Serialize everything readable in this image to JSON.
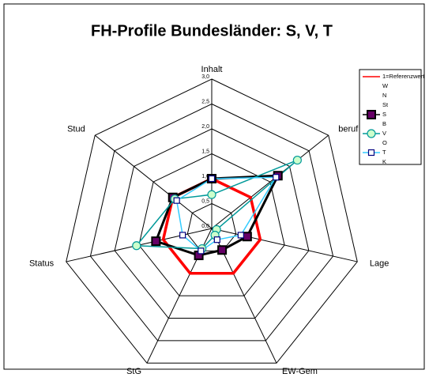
{
  "chart_data": {
    "type": "radar",
    "title": "FH-Profile Bundesländer: S, V, T",
    "categories": [
      "Inhalt",
      "beruf",
      "Lage",
      "EW-Gem",
      "StG",
      "Status",
      "Stud"
    ],
    "ylim": [
      0,
      3
    ],
    "yticks": [
      {
        "value": 0,
        "label": "0,0"
      },
      {
        "value": 0.5,
        "label": "0,5"
      },
      {
        "value": 1,
        "label": "1,0"
      },
      {
        "value": 1.5,
        "label": "1,5"
      },
      {
        "value": 2,
        "label": "2,0"
      },
      {
        "value": 2.5,
        "label": "2,5"
      },
      {
        "value": 3,
        "label": "3,0"
      }
    ],
    "grid": true,
    "legend": "top-right",
    "series": [
      {
        "name": "1=Referenzwert",
        "color": "#ff0000",
        "marker": null,
        "values": [
          1,
          1,
          1,
          1,
          1,
          1,
          1
        ]
      },
      {
        "name": "W",
        "color": null,
        "marker": null,
        "values": [
          null,
          null,
          null,
          null,
          null,
          null,
          null
        ]
      },
      {
        "name": "N",
        "color": null,
        "marker": null,
        "values": [
          null,
          null,
          null,
          null,
          null,
          null,
          null
        ]
      },
      {
        "name": "St",
        "color": null,
        "marker": null,
        "values": [
          null,
          null,
          null,
          null,
          null,
          null,
          null
        ]
      },
      {
        "name": "S",
        "color": "#000000",
        "marker": "square",
        "values": [
          1.0,
          1.7,
          0.73,
          0.48,
          0.6,
          1.15,
          1.0
        ]
      },
      {
        "name": "B",
        "color": null,
        "marker": null,
        "values": [
          null,
          null,
          null,
          null,
          null,
          null,
          null
        ]
      },
      {
        "name": "V",
        "color": "#009999",
        "marker": "circle",
        "values": [
          0.68,
          2.2,
          0.1,
          0.15,
          0.45,
          1.55,
          0.95
        ]
      },
      {
        "name": "O",
        "color": null,
        "marker": null,
        "values": [
          null,
          null,
          null,
          null,
          null,
          null,
          null
        ]
      },
      {
        "name": "T",
        "color": "#33ccff",
        "marker": "open-square",
        "values": [
          1.0,
          1.65,
          0.6,
          0.25,
          0.5,
          0.6,
          0.9
        ]
      },
      {
        "name": "K",
        "color": null,
        "marker": null,
        "values": [
          null,
          null,
          null,
          null,
          null,
          null,
          null
        ]
      }
    ]
  }
}
